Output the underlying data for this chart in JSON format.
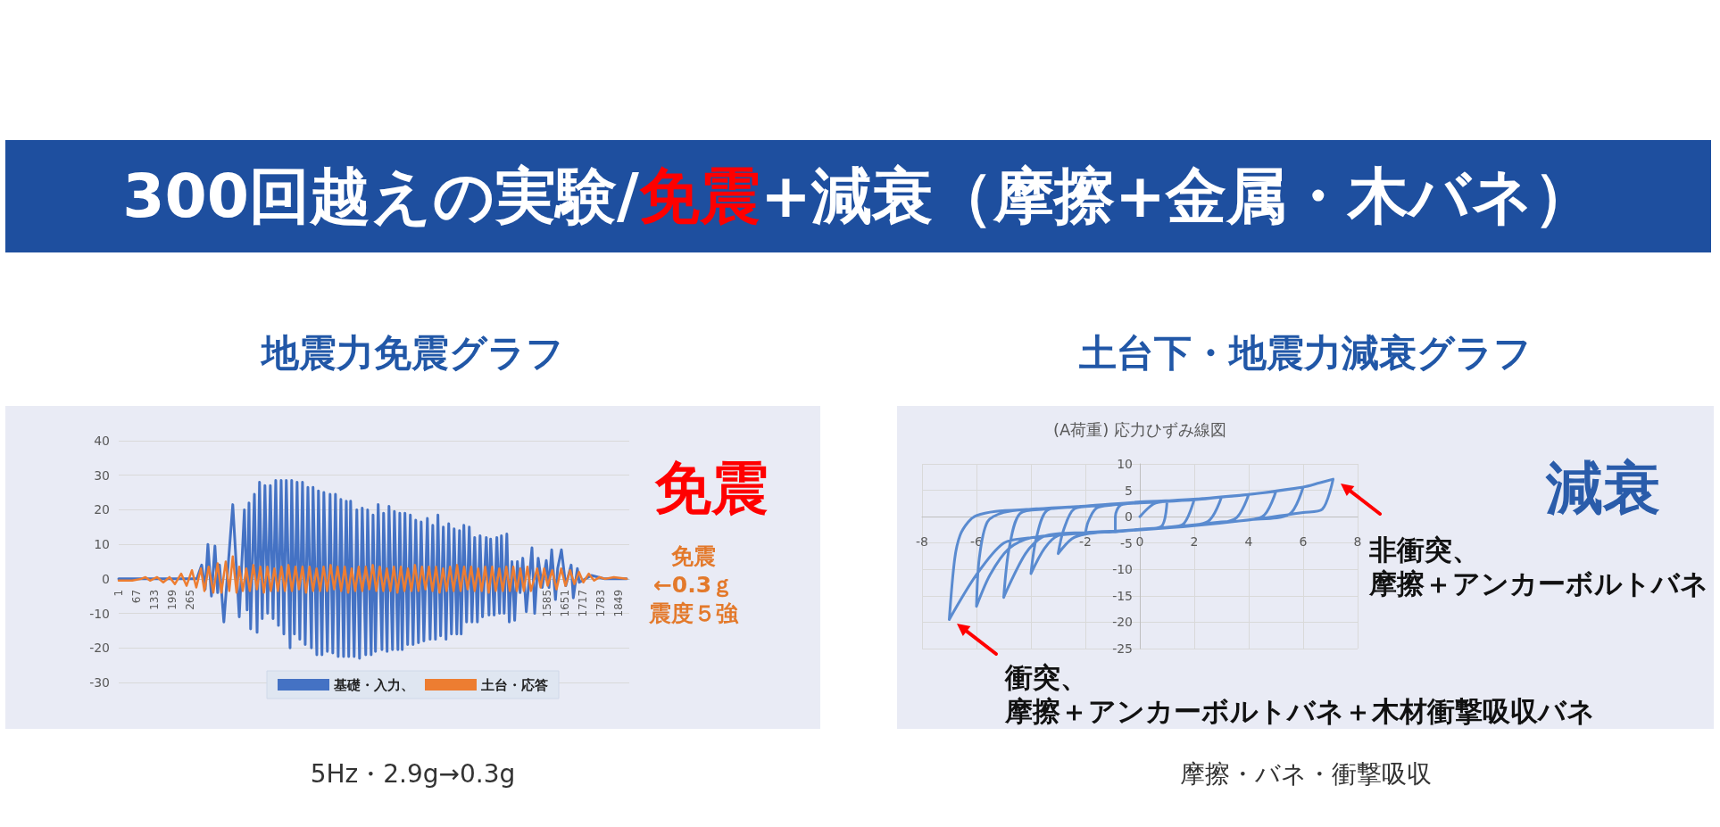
{
  "chart_data": [
    {
      "type": "line",
      "title": "地震力免震グラフ",
      "annotations": [
        "300回越えの実験/",
        "免震",
        "+減衰（摩擦+金属・木バネ）",
        "免震",
        "免震",
        "←0.3ｇ",
        "震度５強",
        "5Hz・2.9g→0.3g"
      ],
      "series": [
        {
          "name": "基礎・入力、",
          "color": "#4472c4",
          "x": [
            1,
            290,
            308,
            321,
            331,
            344,
            357,
            367,
            374,
            390,
            423,
            447,
            466,
            476,
            483,
            489,
            503,
            513,
            522,
            532,
            542,
            552,
            562,
            572,
            582,
            592,
            602,
            612,
            621,
            635,
            641,
            651,
            661,
            671,
            681,
            691,
            701,
            714,
            720,
            734,
            740,
            753,
            760,
            773,
            783,
            793,
            803,
            813,
            823,
            833,
            843,
            852,
            859,
            872,
            882,
            892,
            902,
            915,
            922,
            935,
            942,
            951,
            961,
            975,
            981,
            994,
            1001,
            1014,
            1021,
            1034,
            1041,
            1050,
            1060,
            1070,
            1080,
            1090,
            1100,
            1110,
            1120,
            1130,
            1143,
            1153,
            1163,
            1173,
            1182,
            1192,
            1202,
            1212,
            1222,
            1232,
            1242,
            1252,
            1262,
            1268,
            1278,
            1288,
            1298,
            1308,
            1318,
            1328,
            1338,
            1347,
            1361,
            1371,
            1377,
            1390,
            1400,
            1410,
            1417,
            1427,
            1437,
            1446,
            1456,
            1466,
            1476,
            1486,
            1496,
            1509,
            1530,
            1540,
            1553,
            1568,
            1583,
            1593,
            1603,
            1617,
            1625,
            1639,
            1655,
            1675,
            1683,
            1698,
            1705,
            1750,
            1800,
            1880
          ],
          "values": [
            0,
            0,
            4,
            -3,
            10,
            -5,
            9.5,
            -4,
            4,
            -12.5,
            21.5,
            -11,
            20,
            -9,
            22,
            -14.5,
            24.5,
            -15.5,
            28,
            -11.5,
            27,
            -10,
            27,
            -11.5,
            28.5,
            -13.5,
            28.5,
            -16,
            28.5,
            -20,
            28.5,
            -16,
            28,
            -17.5,
            28,
            -19,
            26.5,
            -20,
            26.5,
            -22,
            25.5,
            -22,
            25,
            -21,
            24.5,
            -21.5,
            24.5,
            -22.5,
            23,
            -22.5,
            22.5,
            -22.5,
            22.5,
            -22.5,
            20,
            -23,
            20.5,
            -22,
            20,
            -22,
            18.5,
            -21,
            21.5,
            -20.5,
            19,
            -21,
            21,
            -20.5,
            19.5,
            -20.5,
            19,
            -20.5,
            19,
            -19,
            18.5,
            -19,
            17,
            -18.5,
            16.5,
            -18,
            17.5,
            -17.5,
            15.5,
            -17.5,
            18.5,
            -16.5,
            15,
            -17.5,
            16,
            -16,
            14.5,
            -16,
            14,
            -16,
            15.5,
            -12.5,
            15,
            -12.5,
            12,
            -12.5,
            12.5,
            -11,
            12,
            -10.5,
            11.5,
            -10.5,
            12,
            -10,
            12.5,
            -10,
            13,
            -12.5,
            5,
            -12,
            5,
            -4,
            6,
            -9.5,
            9,
            -10,
            6,
            -2.5,
            5.3,
            -2.5,
            8.4,
            -6,
            3,
            8.4,
            -2,
            4,
            -5.5,
            3,
            -1,
            1,
            0,
            0
          ]
        },
        {
          "name": "土台・応答",
          "color": "#ed7d31",
          "x": [
            1,
            51,
            84,
            100,
            117,
            143,
            166,
            189,
            209,
            232,
            252,
            272,
            288,
            305,
            318,
            334,
            351,
            367,
            381,
            397,
            410,
            423,
            437,
            447,
            460,
            473,
            486,
            499,
            512,
            525,
            538,
            551,
            564,
            577,
            590,
            603,
            616,
            629,
            642,
            655,
            668,
            681,
            694,
            707,
            720,
            733,
            746,
            759,
            772,
            785,
            798,
            811,
            824,
            837,
            850,
            863,
            876,
            889,
            902,
            915,
            928,
            941,
            954,
            967,
            980,
            993,
            1006,
            1019,
            1032,
            1045,
            1058,
            1071,
            1084,
            1097,
            1110,
            1123,
            1136,
            1149,
            1162,
            1175,
            1188,
            1201,
            1214,
            1227,
            1240,
            1253,
            1266,
            1279,
            1292,
            1305,
            1318,
            1331,
            1344,
            1357,
            1370,
            1383,
            1396,
            1409,
            1422,
            1435,
            1448,
            1461,
            1474,
            1487,
            1500,
            1513,
            1526,
            1549,
            1562,
            1575,
            1588,
            1605,
            1621,
            1638,
            1654,
            1671,
            1687,
            1704,
            1720,
            1740,
            1760,
            1780,
            1800,
            1833,
            1880
          ],
          "values": [
            -0.5,
            -0.5,
            0,
            0.5,
            -0.5,
            0.5,
            -1,
            0.5,
            -1.5,
            1.5,
            -2,
            2.5,
            -2.5,
            3,
            -3.5,
            3.5,
            -4,
            4.5,
            -4,
            5,
            -3.5,
            6.5,
            -4,
            3.5,
            -3.5,
            3,
            -3.5,
            4,
            -3,
            3.5,
            -4,
            3.5,
            -3.5,
            3,
            -3.5,
            3.5,
            -3.5,
            4,
            -3.5,
            3.5,
            -3,
            3.5,
            -4,
            3.5,
            -3.5,
            3,
            -3.5,
            3.5,
            -3.5,
            4,
            -3,
            3.5,
            -3.5,
            3.5,
            -4,
            3,
            -3.5,
            3.5,
            -3.5,
            3.5,
            -3,
            4,
            -3.5,
            3.5,
            -3.5,
            3,
            -3.5,
            3.5,
            -4,
            3.5,
            -3.5,
            3,
            -3.5,
            4,
            -3.5,
            3.5,
            -3,
            3.5,
            -3.5,
            3.5,
            -4,
            3,
            -3.5,
            3.5,
            -3.5,
            4,
            -3.5,
            3.5,
            -3,
            3.5,
            -3.5,
            3,
            -3.5,
            3.5,
            -4,
            3.5,
            -3.5,
            3,
            -3.5,
            3.5,
            -3.5,
            3.5,
            -3.5,
            3,
            -3.5,
            3.5,
            -3.5,
            3,
            -2.5,
            3,
            -2,
            2.5,
            -3,
            3,
            -2,
            2.5,
            -1.5,
            2,
            -1,
            1.5,
            -0.5,
            0.5,
            0,
            0.5,
            0
          ]
        }
      ],
      "xlim": [
        1,
        1890
      ],
      "xticks": [
        1,
        67,
        133,
        199,
        265,
        1585,
        1651,
        1717,
        1783,
        1849
      ],
      "ylim": [
        -30,
        40
      ],
      "yticks": [
        -30,
        -20,
        -10,
        0,
        10,
        20,
        30,
        40
      ],
      "grid": "y",
      "legend": "bottom",
      "marker": "none",
      "line_style": "solid"
    },
    {
      "type": "line",
      "title": "土台下・地震力減衰グラフ",
      "subtitle": "(A荷重) 応力ひずみ線図",
      "annotations": [
        "減衰",
        {
          "text": "非衝突、摩擦＋アンカーボルトバネ",
          "x": 7.1,
          "y": 7.1
        },
        {
          "text": "衝突、摩擦＋アンカーボルトバネ＋木材衝撃吸収バネ",
          "x": -7,
          "y": -19.5
        },
        "摩擦・バネ・衝撃吸収"
      ],
      "series": [
        {
          "color": "#5a8bd0",
          "x": [
            0,
            0.5,
            1,
            0.8,
            0,
            -0.5,
            -0.9,
            -0.9,
            -0.7,
            0,
            1,
            2,
            1.6,
            1,
            0,
            -1,
            -1.6,
            -2,
            -1.9,
            -1.6,
            -1,
            0,
            2,
            3,
            2.5,
            1,
            -1,
            -2,
            -2.5,
            -3,
            -2.8,
            -2.4,
            -1.5,
            0,
            2,
            4,
            3.5,
            2,
            0,
            -2,
            -3,
            -3.5,
            -4,
            -3.8,
            -3.4,
            -2.5,
            0,
            3,
            5,
            4.5,
            3,
            0,
            -2,
            -3.5,
            -4.2,
            -5,
            -4.8,
            -4.4,
            -3.5,
            -1,
            2,
            4,
            6,
            5.5,
            4,
            2,
            0,
            -2,
            -4,
            -4.8,
            -5.5,
            -6,
            -5.9,
            -5.6,
            -5,
            -4,
            -2,
            0,
            2,
            4,
            6,
            6.6,
            7.1,
            6.7,
            6,
            4,
            2,
            0,
            -2,
            -4,
            -5,
            -6,
            -7,
            -6.8,
            -6.6,
            -6.3,
            -6,
            -5.3,
            -4,
            -2,
            0
          ],
          "values": [
            0,
            2.4,
            2.9,
            -1.8,
            -2.4,
            -2.6,
            -2.9,
            0,
            2.2,
            2.6,
            2.9,
            3.3,
            -1.4,
            -2,
            -2.5,
            -2.9,
            -3,
            -3.2,
            -1,
            1.6,
            2.2,
            2.6,
            3.2,
            3.7,
            -0.9,
            -2,
            -2.8,
            -3.3,
            -4.2,
            -7,
            -2.5,
            1.5,
            2.1,
            2.7,
            3.3,
            4.2,
            -0.4,
            -1.6,
            -2.4,
            -3.1,
            -3.6,
            -6,
            -10.8,
            -4,
            1.2,
            1.8,
            2.7,
            3.7,
            4.8,
            0,
            -1,
            -2.5,
            -3,
            -3.7,
            -7,
            -15.3,
            -6,
            0.6,
            1.4,
            2.3,
            3.3,
            4.2,
            5.6,
            0.5,
            -0.6,
            -1.7,
            -2.5,
            -3.1,
            -4,
            -6,
            -11,
            -17,
            -8,
            -1,
            0.8,
            1.4,
            2,
            2.8,
            3.3,
            4.2,
            5.6,
            6.4,
            7.1,
            1.4,
            0.8,
            -0.6,
            -1.7,
            -2.5,
            -3.1,
            -4,
            -5,
            -11,
            -19.5,
            -8,
            -3.5,
            -1,
            0.2,
            1,
            1.4,
            2,
            2.6
          ]
        }
      ],
      "xlim": [
        -8,
        8
      ],
      "xticks": [
        -8,
        -6,
        {
          "value": -4,
          "label": null
        },
        -2,
        0,
        2,
        4,
        6,
        8
      ],
      "ylim": [
        -25,
        10
      ],
      "yticks": [
        -25,
        -20,
        -15,
        -10,
        -5,
        0,
        5,
        10
      ],
      "grid": true,
      "marker": "none",
      "line_style": "solid"
    }
  ]
}
